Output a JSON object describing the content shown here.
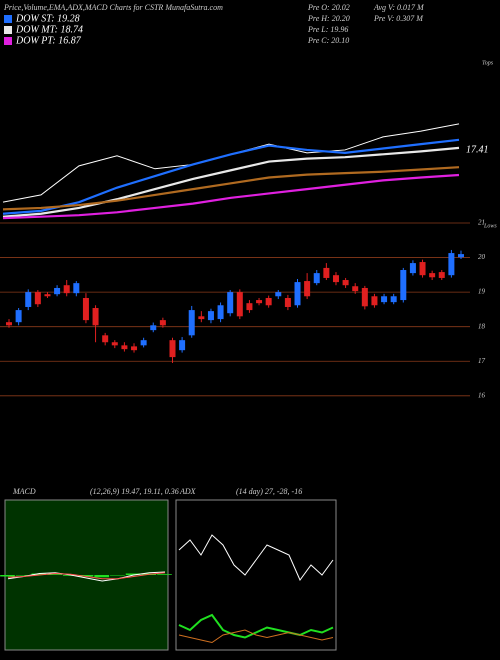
{
  "header": {
    "title": "Price,Volume,EMA,ADX,MACD Charts for CSTR MunafaSutra.com",
    "info_left": [
      "Pre O: 20.02",
      "Pre H: 20.20",
      "Pre L: 19.96",
      "Pre C: 20.10"
    ],
    "info_right": [
      "Avg V: 0.017 M",
      "Pre V: 0.307 M"
    ]
  },
  "chart_data": [
    {
      "type": "line",
      "annotations": [
        "Tops",
        "17.41"
      ],
      "ylim": [
        13.77,
        24.8
      ],
      "series": [
        {
          "color": "#ffffff",
          "values": [
            15.0,
            15.5,
            17.5,
            18.2,
            17.3,
            17.6,
            18.3,
            19.0,
            18.4,
            18.6,
            19.5,
            19.9,
            20.4
          ]
        },
        {
          "name": "DOW ST: 19.28",
          "color": "#1f6fff",
          "values": [
            14.2,
            14.4,
            15.0,
            16.0,
            16.8,
            17.6,
            18.3,
            18.9,
            18.6,
            18.4,
            18.7,
            19.0,
            19.3
          ]
        },
        {
          "name": "DOW MT: 18.74",
          "color": "#e8e8e8",
          "values": [
            14.0,
            14.2,
            14.6,
            15.2,
            15.9,
            16.6,
            17.2,
            17.8,
            18.0,
            18.1,
            18.3,
            18.5,
            18.74
          ]
        },
        {
          "color": "#b06a20",
          "values": [
            14.5,
            14.6,
            14.8,
            15.1,
            15.5,
            15.9,
            16.3,
            16.7,
            16.9,
            17.0,
            17.1,
            17.25,
            17.41
          ]
        },
        {
          "name": "DOW PT: 16.87",
          "color": "#e020e0",
          "values": [
            13.9,
            14.0,
            14.1,
            14.3,
            14.6,
            14.9,
            15.3,
            15.6,
            15.9,
            16.2,
            16.5,
            16.7,
            16.87
          ]
        }
      ]
    },
    {
      "type": "candlestick",
      "annotations": [
        "Lows"
      ],
      "ylim": [
        15.3,
        21
      ],
      "yticks": [
        16,
        17,
        18,
        19,
        20,
        21
      ],
      "up_color": "#1f6fff",
      "down_color": "#e02020",
      "open": [
        18.13,
        18.13,
        18.57,
        19.0,
        18.94,
        18.94,
        19.2,
        18.97,
        18.83,
        18.54,
        17.75,
        17.55,
        17.46,
        17.43,
        17.46,
        17.9,
        18.19,
        17.61,
        17.32,
        17.75,
        18.3,
        18.19,
        18.22,
        18.39,
        19.0,
        18.68,
        18.77,
        18.83,
        18.88,
        18.83,
        18.62,
        19.32,
        19.26,
        19.7,
        19.49,
        19.35,
        19.17,
        19.12,
        18.88,
        18.71,
        18.71,
        18.77,
        19.55,
        19.87,
        19.55,
        19.58,
        19.49,
        20.01
      ],
      "close": [
        18.04,
        18.48,
        19.0,
        18.65,
        18.88,
        19.12,
        18.97,
        19.26,
        18.19,
        18.04,
        17.55,
        17.46,
        17.35,
        17.32,
        17.61,
        18.04,
        18.04,
        17.12,
        17.61,
        18.48,
        18.22,
        18.45,
        18.62,
        19.0,
        18.3,
        18.48,
        18.68,
        18.62,
        19.0,
        18.57,
        19.29,
        18.88,
        19.55,
        19.41,
        19.29,
        19.2,
        19.03,
        18.59,
        18.62,
        18.88,
        18.88,
        19.64,
        19.84,
        19.49,
        19.43,
        19.41,
        20.13,
        20.1
      ],
      "high": [
        18.22,
        18.54,
        19.08,
        19.06,
        19.0,
        19.2,
        19.35,
        19.32,
        18.97,
        18.62,
        17.82,
        17.61,
        17.55,
        17.52,
        17.68,
        18.12,
        18.26,
        17.68,
        17.7,
        18.6,
        18.45,
        18.52,
        18.7,
        19.06,
        19.08,
        18.77,
        18.83,
        18.9,
        19.06,
        18.92,
        19.38,
        19.55,
        19.64,
        19.84,
        19.58,
        19.41,
        19.26,
        19.18,
        18.95,
        18.95,
        18.95,
        19.7,
        19.92,
        19.94,
        19.62,
        19.64,
        20.22,
        20.2
      ],
      "low": [
        17.97,
        18.04,
        18.48,
        18.57,
        18.83,
        18.88,
        18.88,
        18.88,
        18.1,
        17.55,
        17.46,
        17.38,
        17.28,
        17.25,
        17.4,
        17.84,
        17.97,
        16.95,
        17.25,
        17.68,
        18.13,
        18.1,
        18.13,
        18.3,
        18.22,
        18.4,
        18.62,
        18.55,
        18.8,
        18.48,
        18.55,
        18.8,
        19.2,
        19.35,
        19.2,
        19.12,
        18.95,
        18.5,
        18.55,
        18.65,
        18.65,
        18.7,
        19.48,
        19.42,
        19.35,
        19.35,
        19.42,
        19.96
      ]
    },
    {
      "type": "macd",
      "title": "MACD",
      "subtitle": "(12,26,9) 19.47, 19.11, 0.36",
      "ylim": [
        -1,
        1
      ],
      "series": [
        {
          "color": "#ffffff",
          "values": [
            -0.05,
            -0.02,
            0.02,
            0.03,
            0.0,
            -0.04,
            -0.08,
            -0.05,
            0.0,
            0.03,
            0.04
          ]
        },
        {
          "color": "#ff5050",
          "values": [
            -0.03,
            -0.02,
            0.0,
            0.02,
            0.01,
            -0.02,
            -0.05,
            -0.05,
            -0.02,
            0.01,
            0.03
          ]
        }
      ],
      "histogram": [
        -0.02,
        0.0,
        0.02,
        0.01,
        -0.01,
        -0.02,
        -0.03,
        0.0,
        0.02,
        0.02,
        0.01
      ],
      "hist_color": "#20e020"
    },
    {
      "type": "adx",
      "title": "ADX",
      "subtitle": "(14 day) 27, -28, -16",
      "ylim": [
        0,
        60
      ],
      "series": [
        {
          "color": "#ffffff",
          "values": [
            40,
            44,
            38,
            46,
            42,
            34,
            30,
            36,
            42,
            40,
            38,
            28,
            34,
            30,
            36
          ]
        },
        {
          "color": "#20e020",
          "values": [
            10,
            8,
            12,
            14,
            8,
            6,
            5,
            7,
            9,
            8,
            7,
            6,
            8,
            7,
            9
          ]
        },
        {
          "color": "#d07020",
          "values": [
            6,
            5,
            4,
            3,
            6,
            7,
            8,
            6,
            5,
            6,
            7,
            6,
            5,
            4,
            5
          ]
        }
      ]
    }
  ]
}
